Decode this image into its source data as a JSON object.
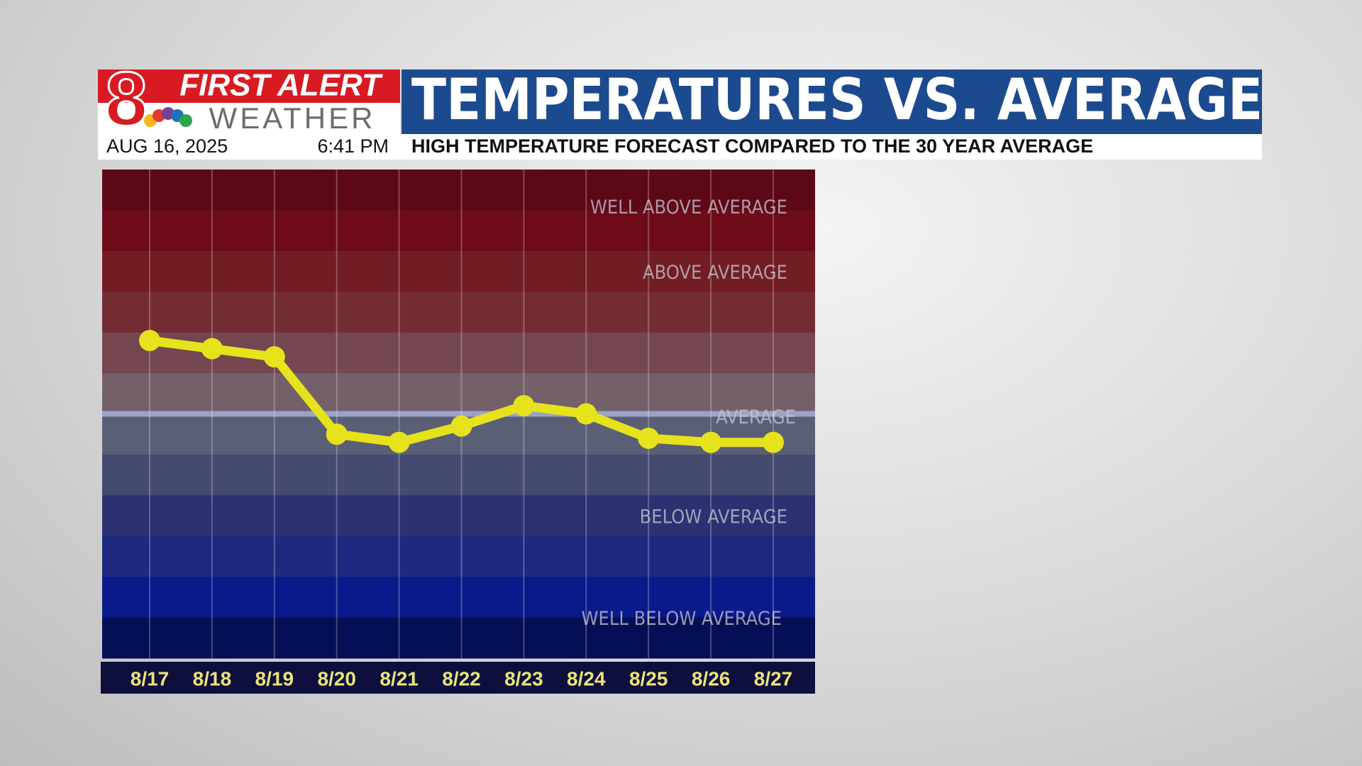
{
  "header": {
    "brand_number": "8",
    "brand_line1": "FIRST ALERT",
    "brand_line2": "WEATHER",
    "date": "AUG 16, 2025",
    "time": "6:41 PM"
  },
  "chart_data": {
    "type": "line",
    "title": "TEMPERATURES VS. AVERAGE",
    "subtitle": "HIGH TEMPERATURE FORECAST COMPARED TO THE 30 YEAR AVERAGE",
    "categories": [
      "8/17",
      "8/18",
      "8/19",
      "8/20",
      "8/21",
      "8/22",
      "8/23",
      "8/24",
      "8/25",
      "8/26",
      "8/27"
    ],
    "values": [
      1.8,
      1.6,
      1.4,
      -0.5,
      -0.7,
      -0.3,
      0.2,
      0.0,
      -0.6,
      -0.7,
      -0.7
    ],
    "color": "#e6e21c",
    "ylim": [
      -6,
      6
    ],
    "reference_line": 0,
    "annotations": [
      "WELL ABOVE AVERAGE",
      "ABOVE AVERAGE",
      "AVERAGE",
      "BELOW AVERAGE",
      "WELL BELOW AVERAGE"
    ]
  }
}
